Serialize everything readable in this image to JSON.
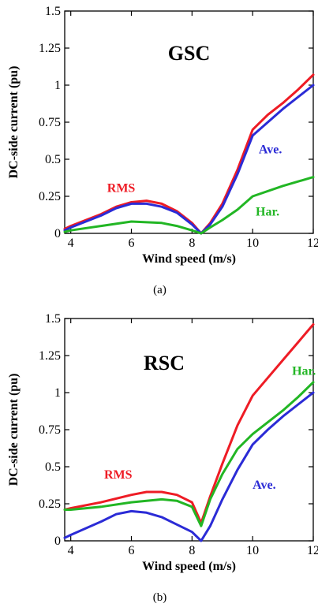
{
  "chart_data": [
    {
      "type": "line",
      "panel_title": "GSC",
      "caption": "(a)",
      "xlabel": "Wind speed (m/s)",
      "ylabel": "DC-side current (pu)",
      "xlim": [
        3.8,
        12
      ],
      "ylim": [
        0,
        1.5
      ],
      "xticks": [
        "4",
        "6",
        "8",
        "10",
        "12"
      ],
      "yticks": [
        "0",
        "0.25",
        "0.5",
        "0.75",
        "1",
        "1.25",
        "1.5"
      ],
      "grid": false,
      "series": [
        {
          "name": "RMS",
          "color": "#ee1c25",
          "x": [
            3.8,
            4,
            5,
            5.5,
            6,
            6.5,
            7,
            7.5,
            8,
            8.3,
            8.6,
            9,
            9.5,
            10,
            10.5,
            11,
            11.5,
            12
          ],
          "y": [
            0.03,
            0.05,
            0.13,
            0.18,
            0.21,
            0.22,
            0.2,
            0.15,
            0.07,
            0.0,
            0.07,
            0.2,
            0.43,
            0.7,
            0.8,
            0.88,
            0.97,
            1.07
          ]
        },
        {
          "name": "Ave.",
          "color": "#2b2bd6",
          "x": [
            3.8,
            4,
            5,
            5.5,
            6,
            6.5,
            7,
            7.5,
            8,
            8.3,
            8.6,
            9,
            9.5,
            10,
            10.5,
            11,
            11.5,
            12
          ],
          "y": [
            0.02,
            0.04,
            0.12,
            0.17,
            0.2,
            0.2,
            0.18,
            0.14,
            0.06,
            0.0,
            0.06,
            0.18,
            0.4,
            0.66,
            0.75,
            0.84,
            0.92,
            1.0
          ]
        },
        {
          "name": "Har.",
          "color": "#22b624",
          "x": [
            3.8,
            4,
            5,
            6,
            7,
            7.5,
            8,
            8.3,
            8.6,
            9,
            9.5,
            10,
            11,
            12
          ],
          "y": [
            0.01,
            0.02,
            0.05,
            0.08,
            0.07,
            0.05,
            0.02,
            0.0,
            0.04,
            0.09,
            0.16,
            0.25,
            0.32,
            0.38
          ]
        }
      ],
      "annotations": [
        {
          "text": "RMS",
          "color": "#ee1c25",
          "x": 5.2,
          "y": 0.28
        },
        {
          "text": "Ave.",
          "color": "#2b2bd6",
          "x": 10.2,
          "y": 0.54
        },
        {
          "text": "Har.",
          "color": "#22b624",
          "x": 10.1,
          "y": 0.12
        }
      ]
    },
    {
      "type": "line",
      "panel_title": "RSC",
      "caption": "(b)",
      "xlabel": "Wind speed (m/s)",
      "ylabel": "DC-side current (pu)",
      "xlim": [
        3.8,
        12
      ],
      "ylim": [
        0,
        1.5
      ],
      "xticks": [
        "4",
        "6",
        "8",
        "10",
        "12"
      ],
      "yticks": [
        "0",
        "0.25",
        "0.5",
        "0.75",
        "1",
        "1.25",
        "1.5"
      ],
      "grid": false,
      "series": [
        {
          "name": "RMS",
          "color": "#ee1c25",
          "x": [
            3.8,
            4,
            5,
            6,
            6.5,
            7,
            7.5,
            8,
            8.3,
            8.6,
            9,
            9.5,
            10,
            10.5,
            11,
            11.5,
            12
          ],
          "y": [
            0.21,
            0.22,
            0.26,
            0.31,
            0.33,
            0.33,
            0.31,
            0.26,
            0.12,
            0.3,
            0.52,
            0.78,
            0.98,
            1.1,
            1.22,
            1.34,
            1.46
          ]
        },
        {
          "name": "Har.",
          "color": "#22b624",
          "x": [
            3.8,
            4,
            5,
            6,
            7,
            7.5,
            8,
            8.3,
            8.6,
            9,
            9.5,
            10,
            10.5,
            11,
            11.5,
            12
          ],
          "y": [
            0.21,
            0.21,
            0.23,
            0.26,
            0.28,
            0.27,
            0.23,
            0.1,
            0.28,
            0.45,
            0.62,
            0.72,
            0.8,
            0.88,
            0.97,
            1.07
          ]
        },
        {
          "name": "Ave.",
          "color": "#2b2bd6",
          "x": [
            3.8,
            4,
            5,
            5.5,
            6,
            6.5,
            7,
            7.5,
            8,
            8.3,
            8.6,
            9,
            9.5,
            10,
            10.5,
            11,
            11.5,
            12
          ],
          "y": [
            0.02,
            0.04,
            0.13,
            0.18,
            0.2,
            0.19,
            0.16,
            0.11,
            0.06,
            0.0,
            0.1,
            0.28,
            0.48,
            0.65,
            0.75,
            0.84,
            0.92,
            1.0
          ]
        }
      ],
      "annotations": [
        {
          "text": "RMS",
          "color": "#ee1c25",
          "x": 5.1,
          "y": 0.42
        },
        {
          "text": "Har.",
          "color": "#22b624",
          "x": 11.3,
          "y": 1.12
        },
        {
          "text": "Ave.",
          "color": "#2b2bd6",
          "x": 10.0,
          "y": 0.35
        }
      ]
    }
  ]
}
